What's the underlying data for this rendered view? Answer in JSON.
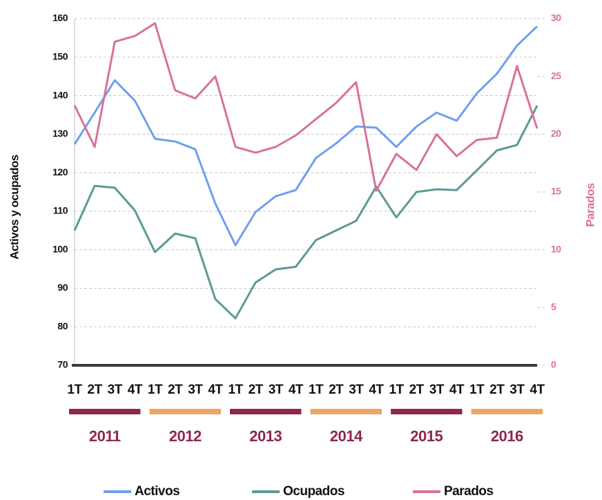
{
  "chart_data": {
    "type": "line",
    "y_label": "Activos y ocupados",
    "y2_label": "Parados",
    "categories": [
      "1T",
      "2T",
      "3T",
      "4T",
      "1T",
      "2T",
      "3T",
      "4T",
      "1T",
      "2T",
      "3T",
      "4T",
      "1T",
      "2T",
      "3T",
      "4T",
      "1T",
      "2T",
      "3T",
      "4T",
      "1T",
      "2T",
      "3T",
      "4T"
    ],
    "year_groups": [
      {
        "label": "2011",
        "color": "#8e2650"
      },
      {
        "label": "2012",
        "color": "#eba564"
      },
      {
        "label": "2013",
        "color": "#8e2650"
      },
      {
        "label": "2014",
        "color": "#eba564"
      },
      {
        "label": "2015",
        "color": "#8e2650"
      },
      {
        "label": "2016",
        "color": "#eba564"
      }
    ],
    "series": [
      {
        "name": "Activos",
        "color": "#6f9ef0",
        "values": [
          127.4,
          135.6,
          144.0,
          138.7,
          128.8,
          128.1,
          126.1,
          112.0,
          101.2,
          109.8,
          113.9,
          115.5,
          123.8,
          127.6,
          132.0,
          131.7,
          126.7,
          132.0,
          135.6,
          133.5,
          140.6,
          145.7,
          153.0,
          158.0
        ]
      },
      {
        "name": "Ocupados",
        "color": "#5a9a94",
        "values": [
          105.0,
          116.6,
          116.1,
          110.2,
          99.4,
          104.2,
          103.0,
          87.2,
          82.2,
          91.5,
          94.9,
          95.6,
          102.5,
          105.0,
          107.5,
          116.4,
          108.4,
          115.0,
          115.7,
          115.5,
          120.6,
          125.8,
          127.2,
          137.4
        ]
      },
      {
        "name": "Parados",
        "color": "#d9719a",
        "axis": "y2",
        "values": [
          22.5,
          18.9,
          28.0,
          28.5,
          29.6,
          23.8,
          23.1,
          25.0,
          18.9,
          18.4,
          18.9,
          19.9,
          21.3,
          22.7,
          24.5,
          15.1,
          18.3,
          16.9,
          20.0,
          18.1,
          19.5,
          19.7,
          25.9,
          20.5
        ]
      }
    ],
    "ylim": [
      70,
      160
    ],
    "yticks": [
      70,
      80,
      90,
      100,
      110,
      120,
      130,
      140,
      150,
      160
    ],
    "y2lim": [
      0,
      30
    ],
    "y2ticks": [
      0,
      5,
      10,
      15,
      20,
      25,
      30
    ],
    "y2_color": "#d9719a",
    "grid": true
  }
}
